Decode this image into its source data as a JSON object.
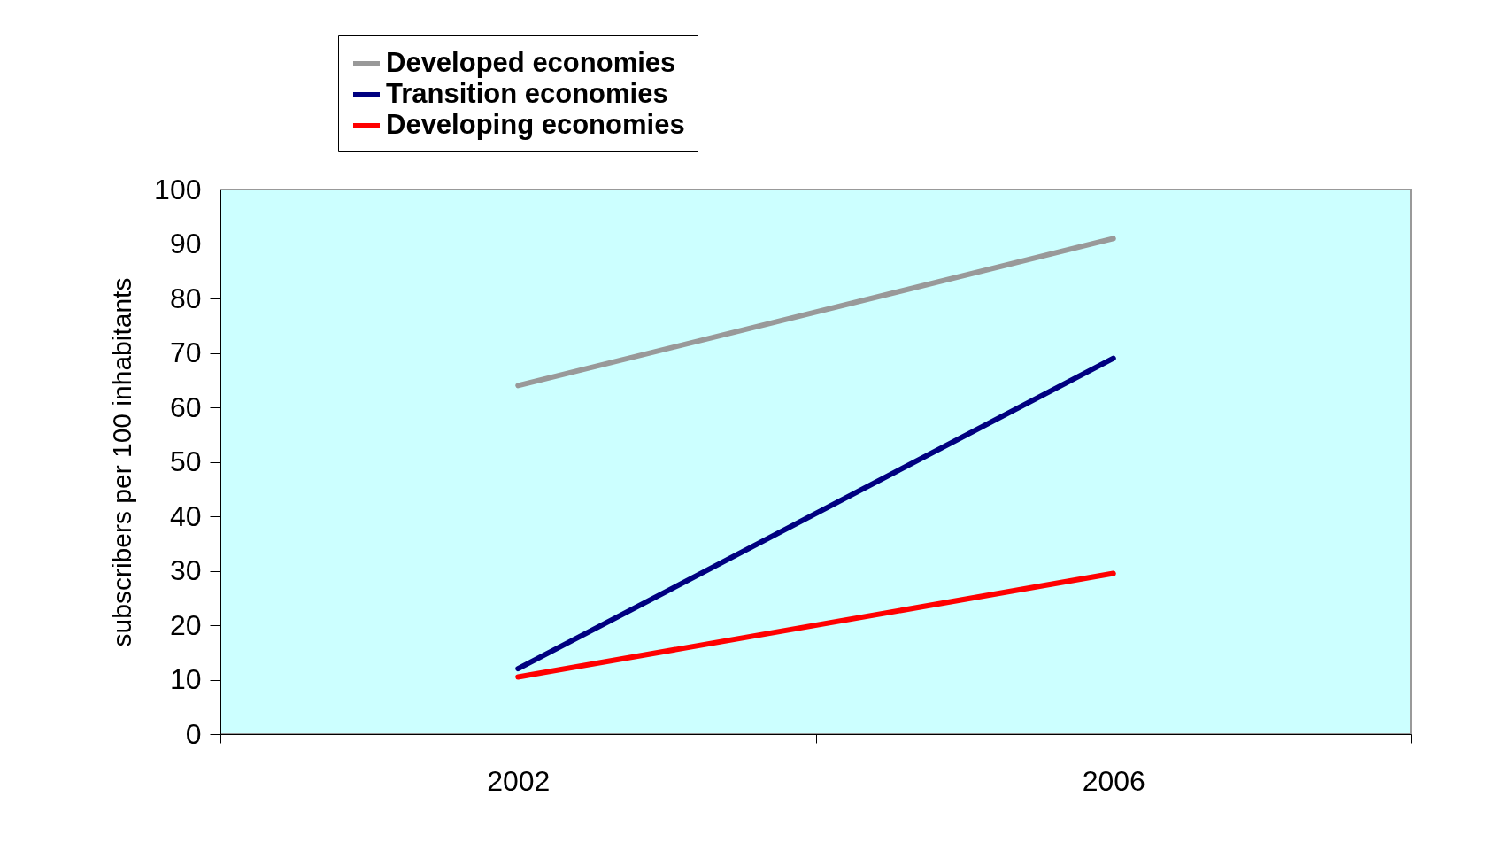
{
  "chart_data": {
    "type": "line",
    "ylabel": "subscribers per 100 inhabitants",
    "categories": [
      "2002",
      "2006"
    ],
    "series": [
      {
        "name": "Developed economies",
        "color": "#999999",
        "values": [
          64,
          91
        ]
      },
      {
        "name": "Transition economies",
        "color": "#000080",
        "values": [
          12,
          69
        ]
      },
      {
        "name": "Developing economies",
        "color": "#ff0000",
        "values": [
          10.5,
          29.5
        ]
      }
    ],
    "ylim": [
      0,
      100
    ],
    "yticks": [
      0,
      10,
      20,
      30,
      40,
      50,
      60,
      70,
      80,
      90,
      100
    ],
    "grid": false,
    "legend": "top",
    "marker": "none",
    "line_style": "solid"
  }
}
